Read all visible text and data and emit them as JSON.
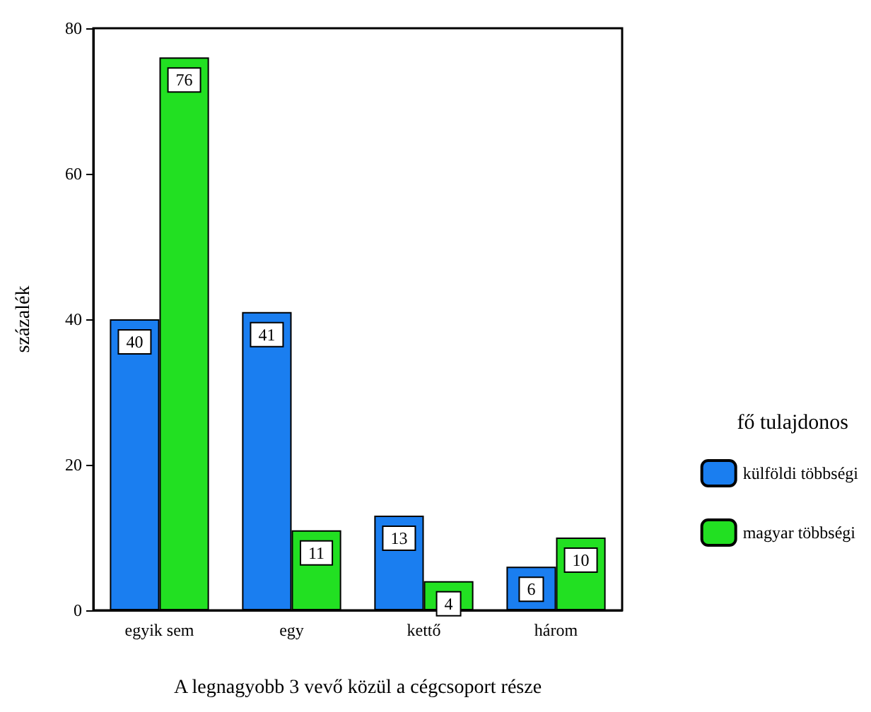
{
  "chart_data": {
    "type": "bar",
    "xlabel": "A legnagyobb 3 vevő közül a cégcsoport része",
    "ylabel": "százalék",
    "legend_title": "fő tulajdonos",
    "categories": [
      "egyik sem",
      "egy",
      "kettő",
      "három"
    ],
    "series": [
      {
        "name": "külföldi többségi",
        "color": "#1a7ef0",
        "values": [
          40,
          41,
          13,
          6
        ]
      },
      {
        "name": "magyar többségi",
        "color": "#22e022",
        "values": [
          76,
          11,
          4,
          10
        ]
      }
    ],
    "ylim": [
      0,
      80
    ],
    "yticks": [
      0,
      20,
      40,
      60,
      80
    ],
    "grid": false,
    "legend": "right",
    "data_labels": true
  }
}
